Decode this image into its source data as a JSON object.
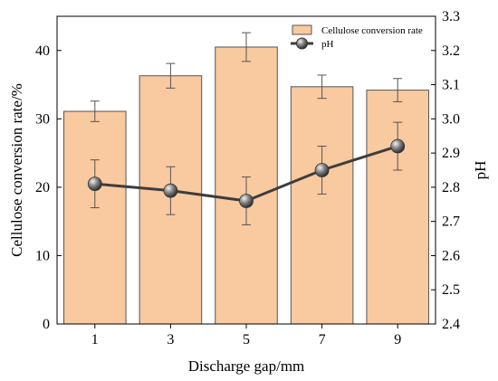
{
  "chart_data": {
    "type": "bar",
    "categories": [
      "1",
      "3",
      "5",
      "7",
      "9"
    ],
    "xlabel": "Discharge gap/mm",
    "ylabel_left": "Cellulose conversion rate/%",
    "ylabel_right": "pH",
    "ylim_left": [
      0,
      45
    ],
    "yticks_left": [
      "0",
      "10",
      "20",
      "30",
      "40"
    ],
    "ylim_right": [
      2.4,
      3.3
    ],
    "yticks_right": [
      "2.4",
      "2.5",
      "2.6",
      "2.7",
      "2.8",
      "2.9",
      "3.0",
      "3.1",
      "3.2",
      "3.3"
    ],
    "grid": false,
    "legend_position": "top-right",
    "series": [
      {
        "name": "Cellulose conversion rate",
        "type": "bar",
        "axis": "left",
        "values": [
          31.1,
          36.3,
          40.5,
          34.7,
          34.2
        ],
        "errors": [
          1.5,
          1.8,
          2.1,
          1.7,
          1.7
        ],
        "color": "#F9C9A0",
        "edge_color": "#555555"
      },
      {
        "name": "pH",
        "type": "line",
        "axis": "right",
        "values": [
          2.81,
          2.79,
          2.76,
          2.85,
          2.92
        ],
        "errors": [
          0.07,
          0.07,
          0.07,
          0.07,
          0.07
        ],
        "color": "#3d3d3d",
        "marker": "sphere"
      }
    ]
  }
}
